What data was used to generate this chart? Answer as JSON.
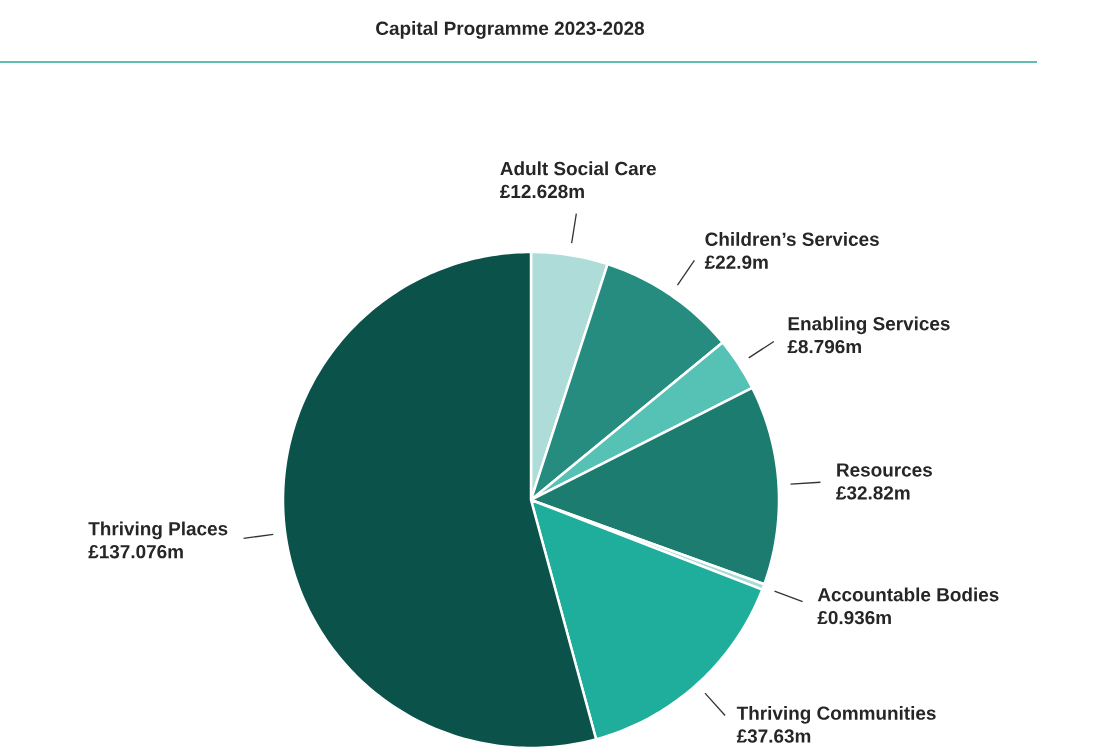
{
  "chart_data": {
    "type": "pie",
    "title": "Capital Programme 2023-2028",
    "categories": [
      "Adult Social Care",
      "Children’s Services",
      "Enabling Services",
      "Resources",
      "Accountable Bodies",
      "Thriving Communities",
      "Thriving Places"
    ],
    "values": [
      12.628,
      22.9,
      8.796,
      32.82,
      0.936,
      37.63,
      137.076
    ],
    "value_labels": [
      "£12.628m",
      "£22.9m",
      "£8.796m",
      "£32.82m",
      "£0.936m",
      "£37.63m",
      "£137.076m"
    ],
    "colors": [
      "#addcd9",
      "#258c7f",
      "#55c2b5",
      "#1c7c70",
      "#a8dcd6",
      "#20ae9c",
      "#0b524b"
    ]
  }
}
